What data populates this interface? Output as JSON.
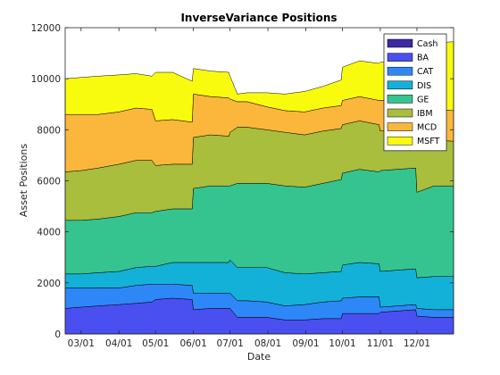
{
  "chart_data": {
    "type": "area",
    "title": "InverseVariance Positions",
    "xlabel": "Date",
    "ylabel": "Asset Positions",
    "xlim": [
      "2012-02-17",
      "2012-12-31"
    ],
    "ylim": [
      0,
      12000
    ],
    "yticks": [
      0,
      2000,
      4000,
      6000,
      8000,
      10000,
      12000
    ],
    "xticks": [
      {
        "date": "2012-03-01",
        "label": "03/01"
      },
      {
        "date": "2012-04-01",
        "label": "04/01"
      },
      {
        "date": "2012-05-01",
        "label": "05/01"
      },
      {
        "date": "2012-06-01",
        "label": "06/01"
      },
      {
        "date": "2012-07-01",
        "label": "07/01"
      },
      {
        "date": "2012-08-01",
        "label": "08/01"
      },
      {
        "date": "2012-09-01",
        "label": "09/01"
      },
      {
        "date": "2012-10-01",
        "label": "10/01"
      },
      {
        "date": "2012-11-01",
        "label": "11/01"
      },
      {
        "date": "2012-12-01",
        "label": "12/01"
      }
    ],
    "grid": false,
    "legend_position": "top-right",
    "x": [
      "2012-02-17",
      "2012-03-01",
      "2012-03-15",
      "2012-04-01",
      "2012-04-15",
      "2012-04-28",
      "2012-05-01",
      "2012-05-15",
      "2012-05-31",
      "2012-06-01",
      "2012-06-15",
      "2012-06-30",
      "2012-07-01",
      "2012-07-07",
      "2012-07-15",
      "2012-07-31",
      "2012-08-15",
      "2012-08-31",
      "2012-09-15",
      "2012-09-30",
      "2012-10-01",
      "2012-10-15",
      "2012-10-31",
      "2012-11-01",
      "2012-11-15",
      "2012-11-30",
      "2012-12-01",
      "2012-12-15",
      "2012-12-31"
    ],
    "series": [
      {
        "name": "Cash",
        "color": "#3e26a8",
        "values": [
          0,
          0,
          0,
          0,
          0,
          0,
          0,
          0,
          0,
          0,
          0,
          0,
          0,
          0,
          0,
          0,
          0,
          0,
          0,
          0,
          0,
          0,
          0,
          0,
          0,
          0,
          0,
          0,
          0
        ]
      },
      {
        "name": "BA",
        "color": "#4a4ff0",
        "values": [
          1000,
          1050,
          1100,
          1150,
          1200,
          1250,
          1350,
          1400,
          1350,
          950,
          1000,
          1000,
          1000,
          650,
          650,
          650,
          550,
          550,
          600,
          600,
          800,
          800,
          800,
          850,
          900,
          950,
          700,
          650,
          650
        ]
      },
      {
        "name": "CAT",
        "color": "#2e87f7",
        "values": [
          800,
          750,
          700,
          650,
          700,
          700,
          600,
          550,
          550,
          650,
          600,
          600,
          600,
          650,
          650,
          600,
          550,
          600,
          650,
          700,
          600,
          650,
          650,
          200,
          200,
          200,
          300,
          300,
          300
        ]
      },
      {
        "name": "DIS",
        "color": "#13b1d8",
        "values": [
          550,
          550,
          600,
          650,
          700,
          700,
          700,
          850,
          900,
          1200,
          1200,
          1200,
          1300,
          1300,
          1300,
          1350,
          1300,
          1200,
          1150,
          1150,
          1300,
          1350,
          1300,
          1400,
          1400,
          1400,
          1200,
          1300,
          1300
        ]
      },
      {
        "name": "GE",
        "color": "#35c490",
        "values": [
          2100,
          2100,
          2100,
          2150,
          2150,
          2100,
          2150,
          2100,
          2100,
          2900,
          3000,
          3000,
          2900,
          3300,
          3300,
          3300,
          3400,
          3400,
          3500,
          3600,
          3600,
          3650,
          3600,
          3950,
          3950,
          3950,
          3350,
          3550,
          3550
        ]
      },
      {
        "name": "IBM",
        "color": "#a8be3c",
        "values": [
          1900,
          1950,
          2000,
          2050,
          2050,
          2050,
          1800,
          1750,
          1750,
          2000,
          2000,
          1950,
          2100,
          2200,
          2200,
          2100,
          2100,
          2050,
          2050,
          2000,
          1900,
          1900,
          1850,
          1550,
          1550,
          1550,
          2050,
          1800,
          1750
        ]
      },
      {
        "name": "MCD",
        "color": "#fbb73b",
        "values": [
          2250,
          2200,
          2100,
          2050,
          2050,
          2000,
          1750,
          1750,
          1650,
          1700,
          1500,
          1500,
          1300,
          1000,
          1000,
          900,
          850,
          900,
          900,
          900,
          950,
          950,
          950,
          1200,
          1150,
          1200,
          1200,
          1200,
          1200
        ]
      },
      {
        "name": "MSFT",
        "color": "#f9fb0e",
        "values": [
          1400,
          1450,
          1500,
          1450,
          1350,
          1300,
          1900,
          1850,
          1600,
          1000,
          1000,
          1000,
          900,
          300,
          350,
          550,
          650,
          800,
          850,
          1000,
          1300,
          1400,
          1450,
          1500,
          1500,
          1500,
          2400,
          2600,
          2700
        ]
      }
    ]
  }
}
